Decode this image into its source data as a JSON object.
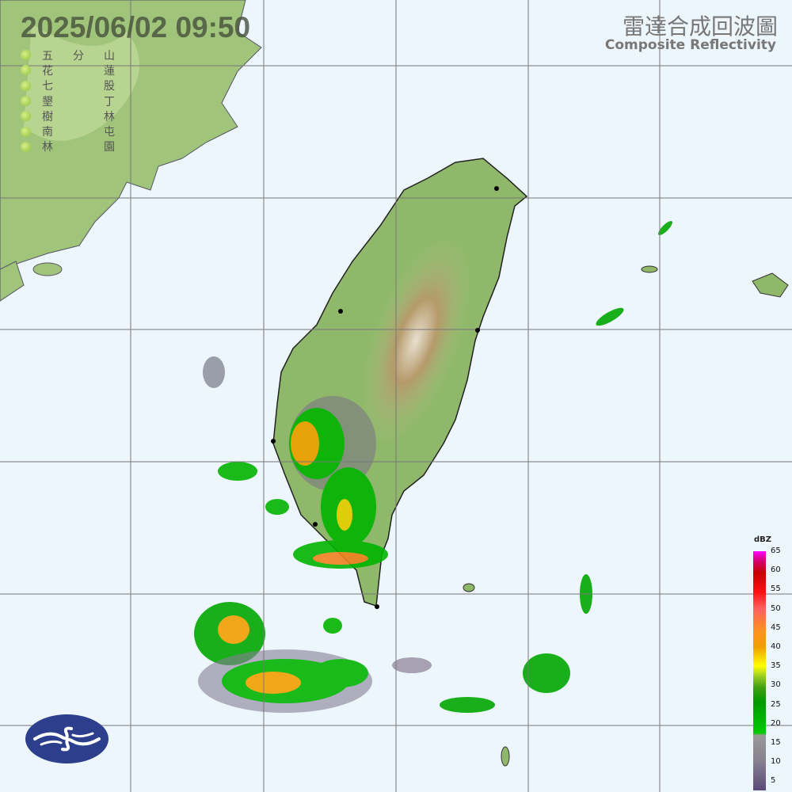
{
  "header": {
    "timestamp": "2025/06/02  09:50",
    "title_zh": "雷達合成回波圖",
    "title_en": "Composite Reflectivity"
  },
  "stations": [
    {
      "c1": "五",
      "c2": "分",
      "c3": "山"
    },
    {
      "c1": "花",
      "c2": "",
      "c3": "蓮"
    },
    {
      "c1": "七",
      "c2": "",
      "c3": "股"
    },
    {
      "c1": "墾",
      "c2": "",
      "c3": "丁"
    },
    {
      "c1": "樹",
      "c2": "",
      "c3": "林"
    },
    {
      "c1": "南",
      "c2": "",
      "c3": "屯"
    },
    {
      "c1": "林",
      "c2": "",
      "c3": "園"
    }
  ],
  "legend": {
    "unit": "dBZ",
    "ticks": [
      "65",
      "60",
      "55",
      "50",
      "45",
      "40",
      "35",
      "30",
      "25",
      "20",
      "15",
      "10",
      "5"
    ]
  },
  "colors": {
    "ocean": "#eef6fd",
    "land": "#8fb86a",
    "mountain": "#b59a6a",
    "grid": "#777777",
    "logo": "#2c3e8c"
  },
  "logo": {
    "icon": "cwa-cloud-wave-logo"
  }
}
